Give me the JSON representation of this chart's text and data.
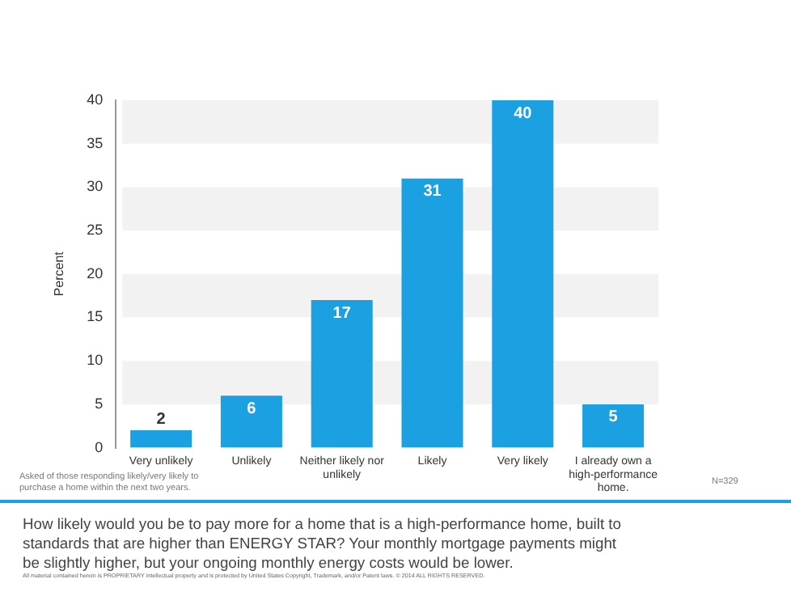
{
  "chart_data": {
    "type": "bar",
    "title": "How likely would you be to pay more for a home that is a high-performance home, built to standards that are higher than ENERGY STAR? Your monthly mortgage payments might be slightly higher, but your ongoing monthly energy costs would be lower.",
    "ylabel": "Percent",
    "categories": [
      "Very unlikely",
      "Unlikely",
      "Neither likely nor unlikely",
      "Likely",
      "Very likely",
      "I already own a high-performance home."
    ],
    "values": [
      2,
      6,
      17,
      31,
      40,
      5
    ],
    "color": "#1ba1e2",
    "ylim": [
      0,
      40
    ],
    "yticks": [
      0,
      5,
      10,
      15,
      20,
      25,
      30,
      35,
      40
    ],
    "grid": false,
    "legend": false,
    "data_labels": true,
    "bands": [
      {
        "axis": "y",
        "from": 5,
        "to": 10,
        "color": "#f2f2f2"
      },
      {
        "axis": "y",
        "from": 15,
        "to": 20,
        "color": "#f2f2f2"
      },
      {
        "axis": "y",
        "from": 25,
        "to": 30,
        "color": "#f2f2f2"
      },
      {
        "axis": "y",
        "from": 35,
        "to": 40,
        "color": "#f2f2f2"
      }
    ],
    "annotations": [
      "Asked of those responding likely/very likely to purchase a home within the next two years.",
      "N=329",
      "All material contained herein is PROPRIETARY intellectual property and is protected by United States Copyright, Trademark, and/or Patent laws. © 2014 ALL RIGHTS RESERVED."
    ]
  }
}
